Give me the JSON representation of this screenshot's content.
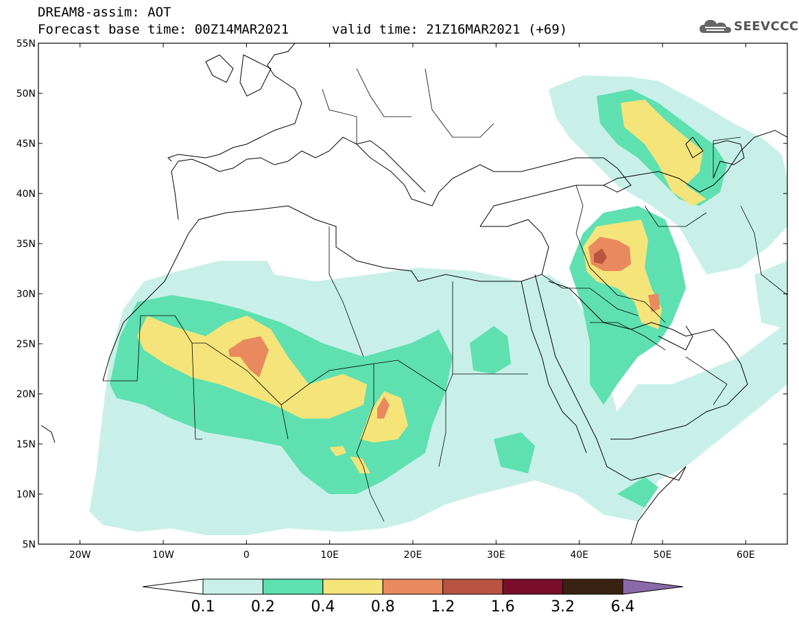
{
  "header": {
    "title": "DREAM8-assim: AOT",
    "base_time": "Forecast base time: 00Z14MAR2021",
    "valid_time": "valid time: 21Z16MAR2021 (+69)"
  },
  "logo": {
    "text": "SEEVCCC",
    "icon": "cloud-icon"
  },
  "axes": {
    "lat_labels": [
      "55N",
      "50N",
      "45N",
      "40N",
      "35N",
      "30N",
      "25N",
      "20N",
      "15N",
      "10N",
      "5N"
    ],
    "lon_labels": [
      "20W",
      "10W",
      "0",
      "10E",
      "20E",
      "30E",
      "40E",
      "50E",
      "60E"
    ],
    "lon_range": [
      -25,
      65
    ],
    "lat_range": [
      5,
      55
    ]
  },
  "colorbar": {
    "labels": [
      "0.1",
      "0.2",
      "0.4",
      "0.8",
      "1.2",
      "1.6",
      "3.2",
      "6.4"
    ],
    "colors": [
      "#ffffff",
      "#c8f0e8",
      "#5ee0b0",
      "#f5e47a",
      "#e88a5e",
      "#b85440",
      "#7a0e2a",
      "#3a2212",
      "#8a6aa8"
    ]
  },
  "colors": {
    "level_01": "#c8f0e8",
    "level_02": "#5ee0b0",
    "level_04": "#f5e47a",
    "level_08": "#e88a5e",
    "level_12": "#b85440"
  }
}
